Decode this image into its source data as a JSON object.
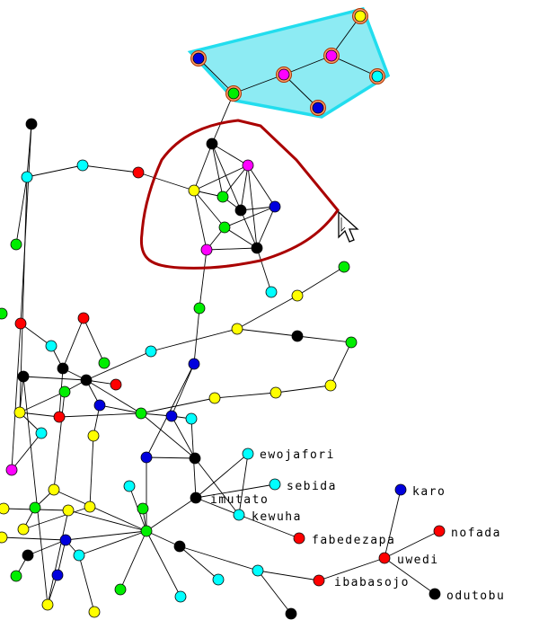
{
  "colors": {
    "yellow": "#ffff00",
    "green": "#00ee00",
    "cyan": "#00ffff",
    "red": "#ff0000",
    "black": "#000000",
    "blue": "#0000dd",
    "magenta": "#ff00ff",
    "selection_fill": "#87eaf2",
    "selection_stroke": "#22ddee",
    "lasso_stroke": "#aa0000"
  },
  "labels": {
    "ewojafori": "ewojafori",
    "sebida": "sebida",
    "imutato": "imutato",
    "kewuha": "kewuha",
    "fabedezapa": "fabedezapa",
    "karo": "karo",
    "nofada": "nofada",
    "uwedi": "uwedi",
    "ibabasojo": "ibabasojo",
    "odutobu": "odutobu"
  },
  "cursor": "mouse-pointer"
}
